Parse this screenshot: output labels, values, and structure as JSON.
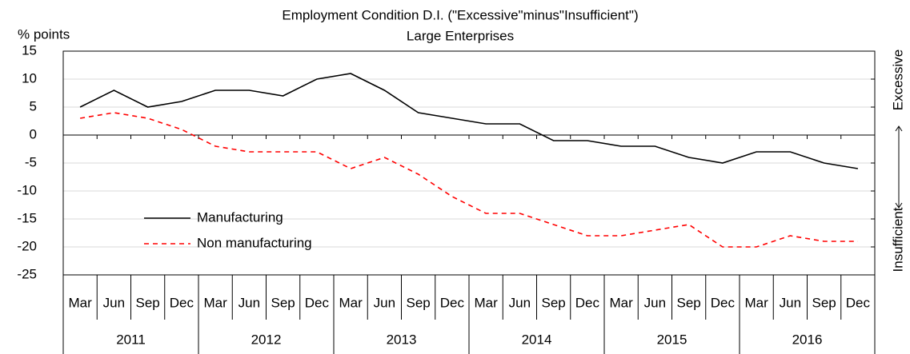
{
  "chart_data": {
    "type": "line",
    "title": "Employment Condition D.I.  (\"Excessive\"minus\"Insufficient\")",
    "subtitle": "Large Enterprises",
    "y_label": "% points",
    "right_labels": [
      "Excessive",
      "Insufficient"
    ],
    "categories": [
      "Mar",
      "Jun",
      "Sep",
      "Dec",
      "Mar",
      "Jun",
      "Sep",
      "Dec",
      "Mar",
      "Jun",
      "Sep",
      "Dec",
      "Mar",
      "Jun",
      "Sep",
      "Dec",
      "Mar",
      "Jun",
      "Sep",
      "Dec",
      "Mar",
      "Jun",
      "Sep",
      "Dec"
    ],
    "years": [
      "2011",
      "2012",
      "2013",
      "2014",
      "2015",
      "2016"
    ],
    "series": [
      {
        "name": "Manufacturing",
        "color": "#000000",
        "dash": false,
        "values": [
          5,
          8,
          5,
          6,
          8,
          8,
          7,
          10,
          11,
          8,
          4,
          3,
          2,
          2,
          -1,
          -1,
          -2,
          -2,
          -4,
          -5,
          -3,
          -3,
          -5,
          -6
        ]
      },
      {
        "name": "Non manufacturing",
        "color": "#ff0000",
        "dash": true,
        "values": [
          3,
          4,
          3,
          1,
          -2,
          -3,
          -3,
          -3,
          -6,
          -4,
          -7,
          -11,
          -14,
          -14,
          -16,
          -18,
          -18,
          -17,
          -16,
          -20,
          -20,
          -18,
          -19,
          -19
        ]
      }
    ],
    "ylim": [
      -25,
      15
    ],
    "yticks": [
      -25,
      -20,
      -15,
      -10,
      -5,
      0,
      5,
      10,
      15
    ],
    "grid": true
  }
}
